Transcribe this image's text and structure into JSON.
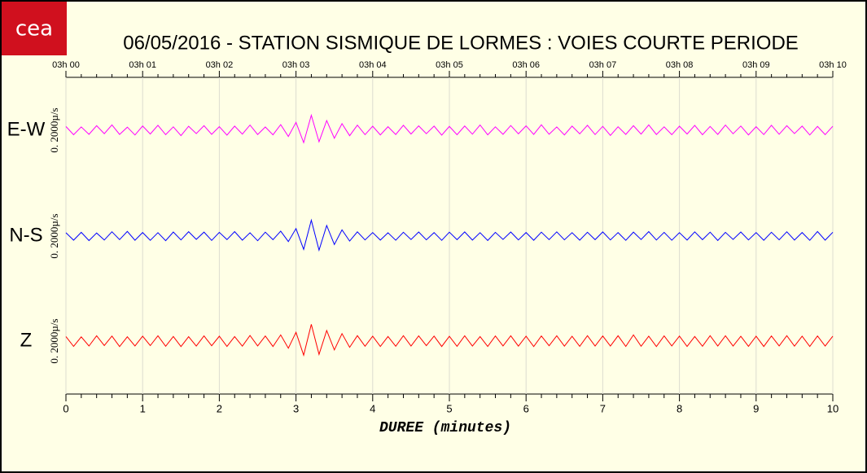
{
  "logo": "cea",
  "chart_data": {
    "type": "line",
    "title": "06/05/2016  -  STATION SISMIQUE DE LORMES : VOIES COURTE PERIODE",
    "xlabel": "DUREE (minutes)",
    "scale_label": "0. 2000µ/s",
    "xlim": [
      0,
      10
    ],
    "xticks": [
      0,
      1,
      2,
      3,
      4,
      5,
      6,
      7,
      8,
      9,
      10
    ],
    "top_xticks": [
      {
        "value": 0,
        "label": "03h 00"
      },
      {
        "value": 1,
        "label": "03h 01"
      },
      {
        "value": 2,
        "label": "03h 02"
      },
      {
        "value": 3,
        "label": "03h 03"
      },
      {
        "value": 4,
        "label": "03h 04"
      },
      {
        "value": 5,
        "label": "03h 05"
      },
      {
        "value": 6,
        "label": "03h 06"
      },
      {
        "value": 7,
        "label": "03h 07"
      },
      {
        "value": 8,
        "label": "03h 08"
      },
      {
        "value": 9,
        "label": "03h 09"
      },
      {
        "value": 10,
        "label": "03h 10"
      }
    ],
    "ylim": [
      -6000,
      6000
    ],
    "grid": true,
    "x": [
      0,
      0.1,
      0.2,
      0.3,
      0.4,
      0.5,
      0.6,
      0.7,
      0.8,
      0.9,
      1,
      1.1,
      1.2,
      1.3,
      1.4,
      1.5,
      1.6,
      1.7,
      1.8,
      1.9,
      2,
      2.1,
      2.2,
      2.3,
      2.4,
      2.5,
      2.6,
      2.7,
      2.8,
      2.9,
      3,
      3.1,
      3.2,
      3.3,
      3.4,
      3.5,
      3.6,
      3.7,
      3.8,
      3.9,
      4,
      4.1,
      4.2,
      4.3,
      4.4,
      4.5,
      4.6,
      4.7,
      4.8,
      4.9,
      5,
      5.1,
      5.2,
      5.3,
      5.4,
      5.5,
      5.6,
      5.7,
      5.8,
      5.9,
      6,
      6.1,
      6.2,
      6.3,
      6.4,
      6.5,
      6.6,
      6.7,
      6.8,
      6.9,
      7,
      7.1,
      7.2,
      7.3,
      7.4,
      7.5,
      7.6,
      7.7,
      7.8,
      7.9,
      8,
      8.1,
      8.2,
      8.3,
      8.4,
      8.5,
      8.6,
      8.7,
      8.8,
      8.9,
      9,
      9.1,
      9.2,
      9.3,
      9.4,
      9.5,
      9.6,
      9.7,
      9.8,
      9.9,
      10
    ],
    "series": [
      {
        "name": "E-W",
        "color": "#ff00ff",
        "values": [
          420,
          -510,
          380,
          -460,
          520,
          -390,
          610,
          -470,
          350,
          -540,
          480,
          -420,
          560,
          -500,
          390,
          -610,
          450,
          -380,
          520,
          -460,
          410,
          -550,
          470,
          -430,
          590,
          -480,
          370,
          -520,
          640,
          -700,
          900,
          -1400,
          1700,
          -1300,
          1100,
          -900,
          750,
          -620,
          580,
          -500,
          460,
          -530,
          410,
          -480,
          560,
          -420,
          500,
          -390,
          470,
          -550,
          430,
          -510,
          480,
          -440,
          600,
          -520,
          390,
          -460,
          540,
          -410,
          500,
          -470,
          620,
          -450,
          380,
          -530,
          470,
          -410,
          560,
          -490,
          440,
          -580,
          400,
          -470,
          520,
          -430,
          610,
          -480,
          390,
          -500,
          460,
          -420,
          550,
          -510,
          430,
          -470,
          590,
          -400,
          480,
          -530,
          410,
          -490,
          560,
          -450,
          520,
          -380,
          470,
          -540,
          430,
          -500,
          450
        ]
      },
      {
        "name": "N-S",
        "color": "#0000ff",
        "values": [
          380,
          -460,
          420,
          -510,
          350,
          -440,
          490,
          -400,
          530,
          -470,
          410,
          -480,
          390,
          -520,
          460,
          -430,
          500,
          -370,
          450,
          -490,
          420,
          -400,
          510,
          -460,
          380,
          -530,
          440,
          -410,
          560,
          -620,
          850,
          -1500,
          1800,
          -1600,
          1200,
          -950,
          700,
          -560,
          480,
          -430,
          400,
          -450,
          380,
          -470,
          430,
          -390,
          460,
          -420,
          400,
          -480,
          440,
          -410,
          470,
          -450,
          390,
          -500,
          420,
          -380,
          460,
          -430,
          410,
          -470,
          440,
          -400,
          480,
          -420,
          390,
          -460,
          430,
          -410,
          470,
          -430,
          400,
          -480,
          450,
          -390,
          510,
          -440,
          420,
          -470,
          390,
          -450,
          480,
          -410,
          440,
          -500,
          420,
          -380,
          460,
          -430,
          400,
          -470,
          430,
          -420,
          490,
          -450,
          410,
          -480,
          520,
          -460,
          430
        ]
      },
      {
        "name": "Z",
        "color": "#ff0000",
        "values": [
          520,
          -600,
          480,
          -550,
          610,
          -500,
          570,
          -620,
          490,
          -540,
          560,
          -510,
          600,
          -580,
          530,
          -620,
          500,
          -560,
          590,
          -530,
          550,
          -600,
          520,
          -570,
          640,
          -540,
          580,
          -610,
          700,
          -800,
          1000,
          -1600,
          1900,
          -1500,
          1200,
          -1000,
          850,
          -700,
          620,
          -580,
          560,
          -600,
          530,
          -580,
          620,
          -550,
          590,
          -520,
          570,
          -610,
          540,
          -590,
          600,
          -560,
          520,
          -610,
          580,
          -540,
          600,
          -570,
          550,
          -620,
          580,
          -530,
          600,
          -570,
          540,
          -590,
          620,
          -560,
          580,
          -550,
          610,
          -600,
          700,
          -580,
          560,
          -620,
          590,
          -540,
          570,
          -600,
          530,
          -580,
          620,
          -550,
          600,
          -560,
          540,
          -590,
          560,
          -610,
          580,
          -540,
          620,
          -570,
          550,
          -600,
          580,
          -550,
          560
        ]
      }
    ]
  }
}
